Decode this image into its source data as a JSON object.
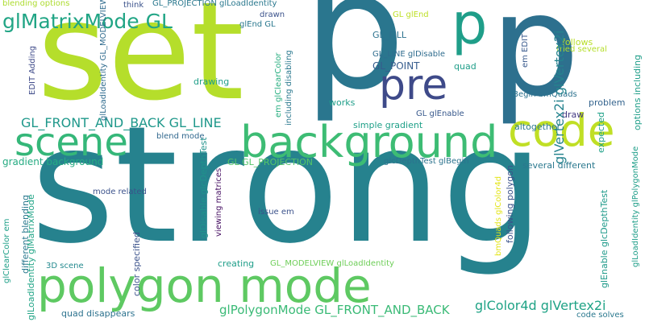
{
  "words": [
    {
      "id": "strong",
      "text": "strong",
      "color": "#26828e"
    },
    {
      "id": "set",
      "text": "set",
      "color": "#b5de2b"
    },
    {
      "id": "p-1",
      "text": "p",
      "color": "#2a768e"
    },
    {
      "id": "p-2",
      "text": "p",
      "color": "#2d708e"
    },
    {
      "id": "p-3",
      "text": "p",
      "color": "#1f9e89"
    },
    {
      "id": "polygon-mode",
      "text": "polygon mode",
      "color": "#5ec962"
    },
    {
      "id": "background",
      "text": "background",
      "color": "#3dbc74"
    },
    {
      "id": "code",
      "text": "code",
      "color": "#c0df25"
    },
    {
      "id": "pre",
      "text": "pre",
      "color": "#3e4a89"
    },
    {
      "id": "scene",
      "text": "scene",
      "color": "#35b779"
    },
    {
      "id": "glMatrixMode-GL",
      "text": "glMatrixMode GL",
      "color": "#21a585"
    },
    {
      "id": "GL_FRONT_AND_BACK-GL_LINE",
      "text": "GL_FRONT_AND_BACK GL_LINE",
      "color": "#1f988b"
    },
    {
      "id": "glPolygonMode-GL_FRONT_AND_BACK",
      "text": "glPolygonMode GL_FRONT_AND_BACK",
      "color": "#3aba76"
    },
    {
      "id": "glColor4d-glVertex2i",
      "text": "glColor4d glVertex2i",
      "color": "#20a386"
    },
    {
      "id": "glVertex2i-glVertex2i",
      "text": "glVertex2i glVertex2i",
      "color": "#25838e"
    },
    {
      "id": "gradient-background",
      "text": "gradient background",
      "color": "#25ab82"
    },
    {
      "id": "GL_FILL",
      "text": "GL_FILL",
      "color": "#2c728e"
    },
    {
      "id": "GL_POINT",
      "text": "GL_POINT",
      "color": "#365c8d"
    },
    {
      "id": "GL_LINE-glDisable",
      "text": "GL_LINE glDisable",
      "color": "#2f6c8e"
    },
    {
      "id": "quad",
      "text": "quad",
      "color": "#1f9e89"
    },
    {
      "id": "problem",
      "text": "problem",
      "color": "#33638d"
    },
    {
      "id": "GL_PROJECTION-glLoadIdentity",
      "text": "GL_PROJECTION glLoadIdentity",
      "color": "#2a788e"
    },
    {
      "id": "glEnd-GL",
      "text": "glEnd GL",
      "color": "#2a788e"
    },
    {
      "id": "think",
      "text": "think",
      "color": "#3b528b"
    },
    {
      "id": "drawn",
      "text": "drawn",
      "color": "#3b528b"
    },
    {
      "id": "GL-glEnd",
      "text": "GL glEnd",
      "color": "#bddf26"
    },
    {
      "id": "follows",
      "text": "follows",
      "color": "#b8de29"
    },
    {
      "id": "tried-several",
      "text": "tried several",
      "color": "#b5de2b"
    },
    {
      "id": "expected",
      "text": "expected",
      "color": "#1fa188"
    },
    {
      "id": "glBegin-bmQuads",
      "text": "glBegin bmQuads",
      "color": "#2c728e"
    },
    {
      "id": "draw",
      "text": "draw",
      "color": "#443a83"
    },
    {
      "id": "altogether",
      "text": "altogether",
      "color": "#2a788e"
    },
    {
      "id": "works",
      "text": "works",
      "color": "#1f9e89"
    },
    {
      "id": "GL-glEnable",
      "text": "GL glEnable",
      "color": "#38598c"
    },
    {
      "id": "simple-gradient",
      "text": "simple gradient",
      "color": "#1fa088"
    },
    {
      "id": "blend-mode",
      "text": "blend mode",
      "color": "#31688e"
    },
    {
      "id": "GL-GL_PROJECTION",
      "text": "GL GL_PROJECTION",
      "color": "#54c568"
    },
    {
      "id": "glcDepthTest-glBegin",
      "text": "glcDepthTest glBegin",
      "color": "#2c738e"
    },
    {
      "id": "several-different",
      "text": "several different",
      "color": "#2a788e"
    },
    {
      "id": "mode-related",
      "text": "mode related",
      "color": "#3b528b"
    },
    {
      "id": "issue-em",
      "text": "issue em",
      "color": "#3b528b"
    },
    {
      "id": "GL_MODELVIEW-glLoadIdentity",
      "text": "GL_MODELVIEW glLoadIdentity",
      "color": "#6ece58"
    },
    {
      "id": "creating",
      "text": "creating",
      "color": "#1f9e89"
    },
    {
      "id": "3D-scene",
      "text": "3D scene",
      "color": "#23898e"
    },
    {
      "id": "quad-disappears",
      "text": "quad disappears",
      "color": "#2c728e"
    },
    {
      "id": "code-solves",
      "text": "code solves",
      "color": "#2a788e"
    },
    {
      "id": "blending-options",
      "text": "blending options",
      "color": "#addc30"
    },
    {
      "id": "EDIT-Adding",
      "text": "EDIT Adding",
      "color": "#3e4a89"
    },
    {
      "id": "glLoadIdentity-GL_MODELVIEW",
      "text": "glLoadIdentity GL_MODELVIEW",
      "color": "#2f6b8e"
    },
    {
      "id": "em-glClearColor",
      "text": "em glClearColor",
      "color": "#28ae80"
    },
    {
      "id": "including-disabling",
      "text": "including disabling",
      "color": "#2a788e"
    },
    {
      "id": "drawing",
      "text": "drawing",
      "color": "#1f9e89"
    },
    {
      "id": "glDisable-glcDepthTest",
      "text": "glDisable glcDepthTest",
      "color": "#20928c"
    },
    {
      "id": "viewing-matrices",
      "text": "viewing matrices",
      "color": "#471063"
    },
    {
      "id": "color-specified",
      "text": "color specified",
      "color": "#3b528b"
    },
    {
      "id": "different-blending",
      "text": "different blending",
      "color": "#2a788e"
    },
    {
      "id": "glClearColor-em",
      "text": "glClearColor em",
      "color": "#1fa088"
    },
    {
      "id": "glLoadIdentity-glMatrixMode",
      "text": "glLoadIdentity glMatrixMode",
      "color": "#20a486"
    },
    {
      "id": "em-EDIT",
      "text": "em EDIT",
      "color": "#38598c"
    },
    {
      "id": "following-polygon",
      "text": "following polygon",
      "color": "#3b528b"
    },
    {
      "id": "bmQuads-glColor4d",
      "text": "bmQuads glColor4d",
      "color": "#e3e418"
    },
    {
      "id": "glEnable-glcDepthTest",
      "text": "glEnable glcDepthTest",
      "color": "#1f9a8a"
    },
    {
      "id": "glLoadIdentity-glPolygonMode",
      "text": "glLoadIdentity glPolygonMode",
      "color": "#1f9e89"
    },
    {
      "id": "options-including",
      "text": "options including",
      "color": "#1f9e89"
    }
  ]
}
